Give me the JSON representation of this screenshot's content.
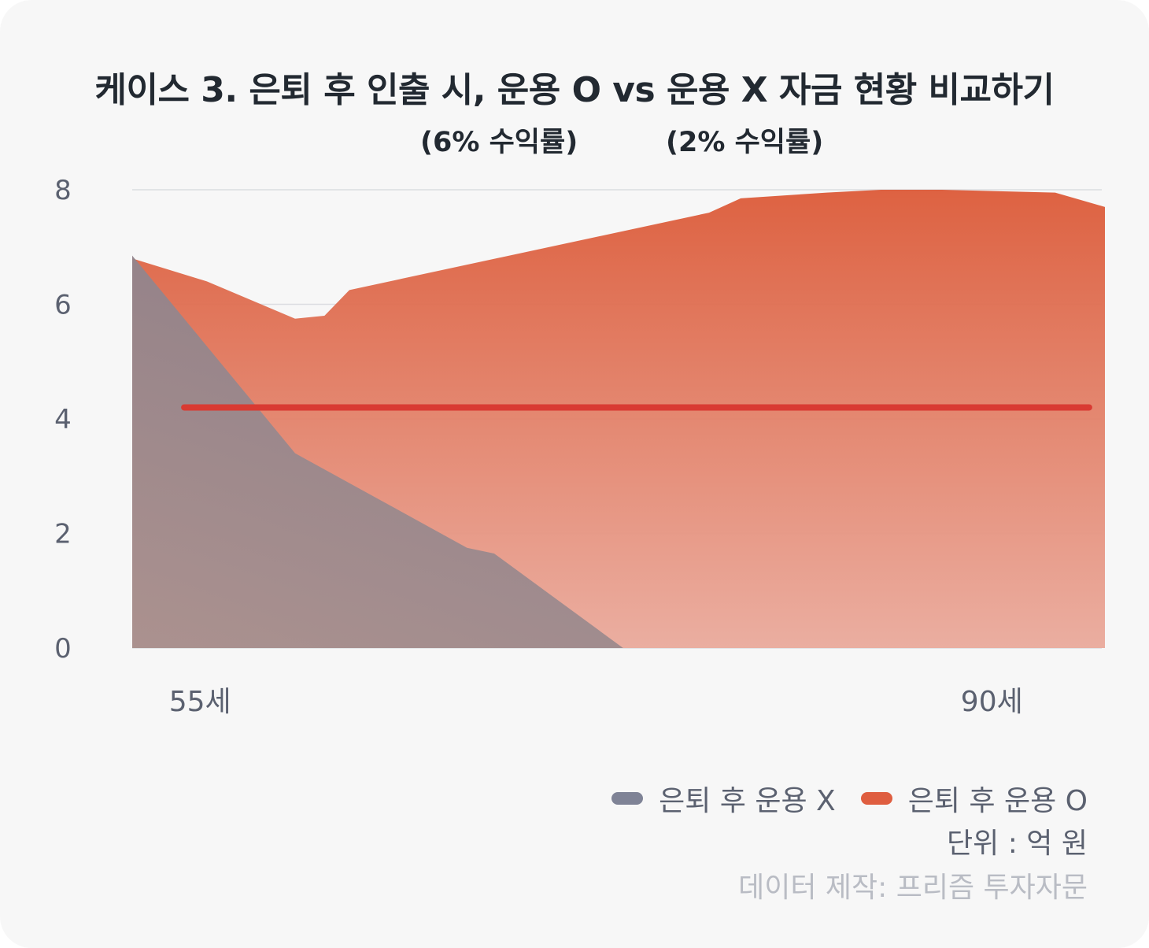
{
  "title": "케이스 3. 은퇴 후 인출 시, 운용 O vs 운용 X 자금 현황 비교하기",
  "subtitle_left": "(6% 수익률)",
  "subtitle_right": "(2% 수익률)",
  "legend": [
    {
      "label": "은퇴 후 운용 X",
      "color": "#7f8396"
    },
    {
      "label": "은퇴 후 운용 O",
      "color": "#df5e40"
    }
  ],
  "unit_label": "단위 : 억 원",
  "credit": "데이터 제작: 프리즘 투자자문",
  "chart_data": {
    "type": "area",
    "ylim": [
      0,
      8
    ],
    "xlim": [
      52,
      95
    ],
    "yticks": [
      "0",
      "2",
      "4",
      "6",
      "8"
    ],
    "xticks": [
      {
        "x": 55,
        "label": "55세"
      },
      {
        "x": 90,
        "label": "90세"
      }
    ],
    "reference_line": {
      "y": 4.2,
      "x_from": 54.3,
      "x_to": 94.3,
      "color": "#d93a32"
    },
    "series": [
      {
        "name": "은퇴 후 운용 O",
        "color": "#df5e40",
        "x": [
          52,
          55.3,
          59.2,
          60.5,
          61.6,
          77.5,
          78.9,
          82.7,
          85.1,
          87.8,
          92.8,
          95
        ],
        "values": [
          6.8,
          6.4,
          5.75,
          5.8,
          6.25,
          7.6,
          7.85,
          7.95,
          8.0,
          8.0,
          7.95,
          7.7
        ]
      },
      {
        "name": "은퇴 후 운용 X",
        "color": "#8a7e8a",
        "x": [
          52,
          59.2,
          66.8,
          68.0,
          73.7,
          95
        ],
        "values": [
          6.85,
          3.4,
          1.75,
          1.65,
          0,
          0
        ]
      }
    ]
  }
}
